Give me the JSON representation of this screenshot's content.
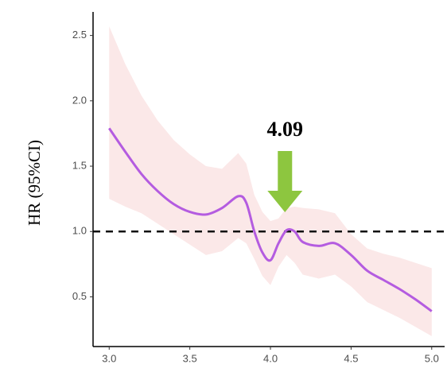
{
  "chart_data": {
    "type": "line",
    "y_label": "HR (95%CI)",
    "x": [
      3.0,
      3.1,
      3.2,
      3.3,
      3.4,
      3.5,
      3.6,
      3.7,
      3.8,
      3.85,
      3.9,
      3.95,
      4.0,
      4.05,
      4.1,
      4.15,
      4.2,
      4.3,
      4.4,
      4.5,
      4.6,
      4.7,
      4.8,
      4.9,
      5.0
    ],
    "line": {
      "color": "#b45ce0",
      "values": [
        1.79,
        1.61,
        1.44,
        1.31,
        1.21,
        1.15,
        1.13,
        1.18,
        1.27,
        1.22,
        1.0,
        0.84,
        0.78,
        0.91,
        1.01,
        1.0,
        0.92,
        0.89,
        0.91,
        0.82,
        0.7,
        0.63,
        0.56,
        0.48,
        0.39
      ]
    },
    "band": {
      "color": "#fbe8e8",
      "upper": [
        2.57,
        2.28,
        2.04,
        1.85,
        1.7,
        1.59,
        1.5,
        1.48,
        1.6,
        1.52,
        1.28,
        1.15,
        1.08,
        1.1,
        1.18,
        1.19,
        1.18,
        1.17,
        1.14,
        0.98,
        0.87,
        0.83,
        0.8,
        0.76,
        0.72
      ],
      "lower": [
        1.25,
        1.19,
        1.14,
        1.06,
        0.98,
        0.9,
        0.82,
        0.85,
        0.95,
        0.91,
        0.79,
        0.66,
        0.59,
        0.73,
        0.82,
        0.76,
        0.67,
        0.64,
        0.67,
        0.58,
        0.46,
        0.4,
        0.34,
        0.27,
        0.2
      ]
    },
    "hline": 1,
    "annotation": {
      "label": "4.09",
      "x": 4.09,
      "color": "#8dc63f"
    },
    "xlim": [
      2.9,
      5.08
    ],
    "ylim": [
      0.12,
      2.68
    ],
    "xticks": [
      {
        "value": 3,
        "label": "3.0"
      },
      3.5,
      {
        "value": 4,
        "label": "4.0"
      },
      4.5,
      {
        "value": 5,
        "label": "5.0"
      }
    ],
    "yticks": [
      0.5,
      {
        "value": 1,
        "label": "1.0"
      },
      1.5,
      {
        "value": 2,
        "label": "2.0"
      },
      2.5
    ]
  }
}
